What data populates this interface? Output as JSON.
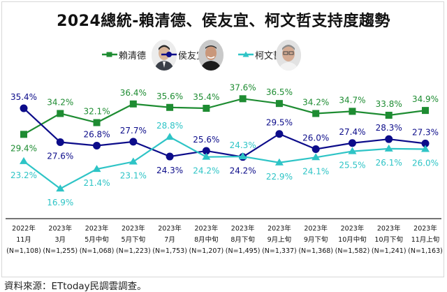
{
  "chart_data": {
    "type": "line",
    "title": "2024總統-賴清德、侯友宜、柯文哲支持度趨勢",
    "categories": [
      {
        "year": "2022年",
        "period": "11月",
        "n": "(N=1,108)"
      },
      {
        "year": "2023年",
        "period": "3月",
        "n": "(N=1,255)"
      },
      {
        "year": "2023年",
        "period": "5月中旬",
        "n": "(N=1,068)"
      },
      {
        "year": "2023年",
        "period": "5月下旬",
        "n": "(N=1,223)"
      },
      {
        "year": "2023年",
        "period": "7月",
        "n": "(N=1,753)"
      },
      {
        "year": "2023年",
        "period": "8月中旬",
        "n": "(N=1,207)"
      },
      {
        "year": "2023年",
        "period": "8月下旬",
        "n": "(N=1,495)"
      },
      {
        "year": "2023年",
        "period": "9月上旬",
        "n": "(N=1,337)"
      },
      {
        "year": "2023年",
        "period": "9月下旬",
        "n": "(N=1,368)"
      },
      {
        "year": "2023年",
        "period": "10月中旬",
        "n": "(N=1,582)"
      },
      {
        "year": "2023年",
        "period": "10月下旬",
        "n": "(N=1,241)"
      },
      {
        "year": "2023年",
        "period": "11月上旬",
        "n": "(N=1,163)"
      }
    ],
    "series": [
      {
        "name": "賴清德",
        "color": "#1e8c32",
        "marker": "square",
        "values": [
          29.4,
          34.2,
          32.1,
          36.4,
          35.6,
          35.4,
          37.6,
          36.5,
          34.2,
          34.7,
          33.8,
          34.9
        ],
        "labels": [
          "29.4%",
          "34.2%",
          "32.1%",
          "36.4%",
          "35.6%",
          "35.4%",
          "37.6%",
          "36.5%",
          "34.2%",
          "34.7%",
          "33.8%",
          "34.9%"
        ],
        "label_pos": [
          "below",
          "above",
          "above",
          "above",
          "above",
          "above",
          "above",
          "above",
          "above",
          "above",
          "above",
          "above"
        ]
      },
      {
        "name": "侯友宜",
        "color": "#0c0c8a",
        "marker": "circle",
        "values": [
          35.4,
          27.6,
          26.8,
          27.7,
          24.3,
          25.6,
          24.2,
          29.5,
          26.0,
          27.4,
          28.3,
          27.3
        ],
        "labels": [
          "35.4%",
          "27.6%",
          "26.8%",
          "27.7%",
          "24.3%",
          "25.6%",
          "24.2%",
          "29.5%",
          "26.0%",
          "27.4%",
          "28.3%",
          "27.3%"
        ],
        "label_pos": [
          "above",
          "below",
          "above",
          "above",
          "below",
          "above",
          "below",
          "above",
          "above",
          "above",
          "above",
          "above"
        ]
      },
      {
        "name": "柯文哲",
        "color": "#2ec4c6",
        "marker": "triangle",
        "values": [
          23.2,
          16.9,
          21.4,
          23.1,
          28.8,
          24.2,
          24.3,
          22.9,
          24.1,
          25.5,
          26.1,
          26.0
        ],
        "labels": [
          "23.2%",
          "16.9%",
          "21.4%",
          "23.1%",
          "28.8%",
          "24.2%",
          "24.3%",
          "22.9%",
          "24.1%",
          "25.5%",
          "26.1%",
          "26.0%"
        ],
        "label_pos": [
          "below",
          "below",
          "below",
          "below",
          "above",
          "below",
          "above",
          "below",
          "below",
          "below",
          "below",
          "below"
        ]
      }
    ],
    "ylim": [
      15,
      39
    ],
    "grid": false,
    "legend": "top-center"
  },
  "source": "資料來源：ETtoday民調雲調查。"
}
